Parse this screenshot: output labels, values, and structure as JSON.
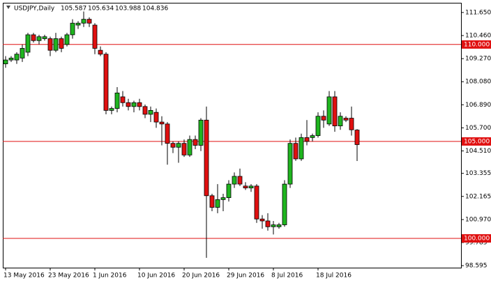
{
  "chart_data": {
    "type": "candlestick",
    "title": "USDJPY,Daily",
    "categories": [
      "13 May 2016",
      null,
      null,
      null,
      null,
      null,
      null,
      null,
      "23 May 2016",
      null,
      null,
      null,
      null,
      null,
      null,
      null,
      "1 Jun 2016",
      null,
      null,
      null,
      null,
      null,
      null,
      null,
      "10 Jun 2016",
      null,
      null,
      null,
      null,
      null,
      null,
      null,
      "20 Jun 2016",
      null,
      null,
      null,
      null,
      null,
      null,
      null,
      "29 Jun 2016",
      null,
      null,
      null,
      null,
      null,
      null,
      null,
      "8 Jul 2016",
      null,
      null,
      null,
      null,
      null,
      null,
      null,
      "18 Jul 2016",
      null,
      null,
      null,
      null,
      null,
      null,
      null
    ],
    "open": [
      109.0,
      109.2,
      109.2,
      109.3,
      109.6,
      110.5,
      110.2,
      110.3,
      110.3,
      109.7,
      110.3,
      110.0,
      110.5,
      111.0,
      111.1,
      111.3,
      111.0,
      109.7,
      109.5,
      106.6,
      106.7,
      107.3,
      107.0,
      106.8,
      107.0,
      106.8,
      106.4,
      106.5,
      106.0,
      105.9,
      104.9,
      104.7,
      104.9,
      104.3,
      105.1,
      104.8,
      106.1,
      102.2,
      101.6,
      102.0,
      102.1,
      102.8,
      103.2,
      102.7,
      102.6,
      102.7,
      101.0,
      100.9,
      100.6,
      100.6,
      100.7,
      102.8,
      104.9,
      104.1,
      105.2,
      105.2,
      105.3,
      106.3,
      105.9,
      107.3,
      105.8,
      106.2,
      106.2,
      105.587
    ],
    "high": [
      109.4,
      109.4,
      109.6,
      110.0,
      110.6,
      110.6,
      110.5,
      110.5,
      110.4,
      110.6,
      110.4,
      110.6,
      111.3,
      111.2,
      111.7,
      111.4,
      111.1,
      109.9,
      109.6,
      106.8,
      107.8,
      107.6,
      107.2,
      107.1,
      107.2,
      106.9,
      106.8,
      106.7,
      106.3,
      106.0,
      105.0,
      105.0,
      105.1,
      105.3,
      105.3,
      106.2,
      106.8,
      102.3,
      102.8,
      102.3,
      103.0,
      103.4,
      103.6,
      102.9,
      102.8,
      102.8,
      101.2,
      101.3,
      100.9,
      100.8,
      103.0,
      105.1,
      105.2,
      105.4,
      106.1,
      105.4,
      106.5,
      106.6,
      107.6,
      107.6,
      106.5,
      106.3,
      106.8,
      105.634
    ],
    "low": [
      108.8,
      109.1,
      109.0,
      109.1,
      109.4,
      110.1,
      110.0,
      110.2,
      109.4,
      109.6,
      109.6,
      109.9,
      110.3,
      110.8,
      110.9,
      110.9,
      109.5,
      109.4,
      106.4,
      106.4,
      106.5,
      106.8,
      106.6,
      106.5,
      106.6,
      106.2,
      106.0,
      105.7,
      104.8,
      103.8,
      104.4,
      103.9,
      104.2,
      104.2,
      104.6,
      104.5,
      99.0,
      101.4,
      101.3,
      101.4,
      101.9,
      102.6,
      102.7,
      102.5,
      102.4,
      100.8,
      100.5,
      100.4,
      100.2,
      100.5,
      100.6,
      102.6,
      104.0,
      104.0,
      104.8,
      105.0,
      105.2,
      105.7,
      105.8,
      105.5,
      105.6,
      106.0,
      105.3,
      103.988
    ],
    "close": [
      109.2,
      109.3,
      109.5,
      109.8,
      110.5,
      110.2,
      110.4,
      110.4,
      109.7,
      110.3,
      109.8,
      110.5,
      111.1,
      111.1,
      111.3,
      111.1,
      109.8,
      109.5,
      106.6,
      106.7,
      107.5,
      107.0,
      106.8,
      107.0,
      106.8,
      106.4,
      106.6,
      106.0,
      105.9,
      104.9,
      104.7,
      104.9,
      104.3,
      105.1,
      104.8,
      106.1,
      102.2,
      101.6,
      102.0,
      102.1,
      102.8,
      103.2,
      102.8,
      102.6,
      102.7,
      101.0,
      100.9,
      100.6,
      100.7,
      100.7,
      102.8,
      104.9,
      104.1,
      105.2,
      105.0,
      105.3,
      106.3,
      106.1,
      107.3,
      105.8,
      106.3,
      106.1,
      105.6,
      104.836
    ],
    "up_color": "#1fb51f",
    "down_color": "#e01010",
    "ylim": [
      98.49,
      112.15
    ],
    "yticks": [
      {
        "value": 111.65,
        "label": "111.650"
      },
      {
        "value": 110.46,
        "label": "110.460"
      },
      {
        "value": 109.27,
        "label": "109.270"
      },
      {
        "value": 108.08,
        "label": "108.080"
      },
      {
        "value": 106.89,
        "label": "106.890"
      },
      {
        "value": 105.7,
        "label": "105.700"
      },
      {
        "value": 104.51,
        "label": "104.510"
      },
      {
        "value": 103.355,
        "label": "103.355"
      },
      {
        "value": 102.165,
        "label": "102.165"
      },
      {
        "value": 100.97,
        "label": "100.970"
      },
      {
        "value": 99.785,
        "label": "99.785"
      },
      {
        "value": 98.595,
        "label": "98.595"
      }
    ],
    "hlines": [
      {
        "value": 110,
        "label": "110.000"
      },
      {
        "value": 105,
        "label": "105.000"
      },
      {
        "value": 100,
        "label": "100.000"
      }
    ],
    "hline_color": "#e01010"
  }
}
